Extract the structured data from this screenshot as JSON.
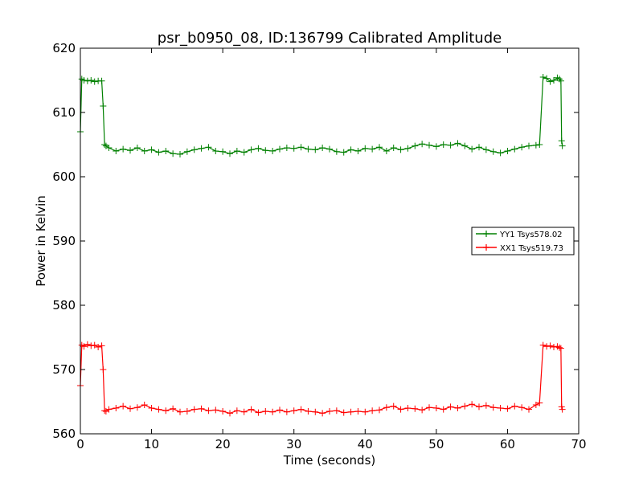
{
  "chart_data": {
    "type": "line",
    "title": "psr_b0950_08, ID:136799 Calibrated Amplitude",
    "xlabel": "Time (seconds)",
    "ylabel": "Power in Kelvin",
    "xlim": [
      0,
      70
    ],
    "ylim": [
      560,
      620
    ],
    "xticks": [
      0,
      10,
      20,
      30,
      40,
      50,
      60,
      70
    ],
    "yticks": [
      560,
      570,
      580,
      590,
      600,
      610,
      620
    ],
    "xtick_labels": [
      "0",
      "10",
      "20",
      "30",
      "40",
      "50",
      "60",
      "70"
    ],
    "ytick_labels": [
      "560",
      "570",
      "580",
      "590",
      "600",
      "610",
      "620"
    ],
    "grid": false,
    "legend_position": "right",
    "marker": "+",
    "series": [
      {
        "name": "YY1 Tsys578.02",
        "color": "#008000",
        "x": [
          0.0,
          0.2,
          0.5,
          1.0,
          1.5,
          2.0,
          2.5,
          3.0,
          3.2,
          3.4,
          3.6,
          4,
          5,
          6,
          7,
          8,
          9,
          10,
          11,
          12,
          13,
          14,
          15,
          16,
          17,
          18,
          19,
          20,
          21,
          22,
          23,
          24,
          25,
          26,
          27,
          28,
          29,
          30,
          31,
          32,
          33,
          34,
          35,
          36,
          37,
          38,
          39,
          40,
          41,
          42,
          43,
          44,
          45,
          46,
          47,
          48,
          49,
          50,
          51,
          52,
          53,
          54,
          55,
          56,
          57,
          58,
          59,
          60,
          61,
          62,
          63,
          64,
          64.5,
          65.0,
          65.5,
          66.0,
          66.5,
          67.0,
          67.3,
          67.5,
          67.6,
          67.7
        ],
        "y": [
          607,
          615.2,
          615.0,
          614.9,
          615.0,
          614.8,
          614.9,
          614.9,
          611,
          605,
          604.8,
          604.5,
          604.0,
          604.3,
          604.1,
          604.5,
          604.0,
          604.2,
          603.8,
          604.0,
          603.6,
          603.5,
          603.9,
          604.2,
          604.4,
          604.6,
          604.0,
          603.9,
          603.6,
          604.0,
          603.8,
          604.2,
          604.4,
          604.1,
          604.0,
          604.3,
          604.5,
          604.4,
          604.6,
          604.3,
          604.2,
          604.5,
          604.3,
          603.9,
          603.8,
          604.2,
          604.0,
          604.4,
          604.3,
          604.6,
          604.0,
          604.5,
          604.2,
          604.4,
          604.8,
          605.1,
          604.9,
          604.7,
          605.0,
          604.9,
          605.2,
          604.8,
          604.3,
          604.6,
          604.2,
          603.9,
          603.7,
          604.0,
          604.3,
          604.6,
          604.8,
          604.9,
          605.0,
          615.5,
          615.3,
          614.8,
          615.0,
          615.4,
          615.2,
          614.9,
          605.6,
          604.8
        ]
      },
      {
        "name": "XX1 Tsys519.73",
        "color": "#ff0000",
        "x": [
          0.0,
          0.2,
          0.5,
          1.0,
          1.5,
          2.0,
          2.5,
          3.0,
          3.2,
          3.4,
          3.6,
          4,
          5,
          6,
          7,
          8,
          9,
          10,
          11,
          12,
          13,
          14,
          15,
          16,
          17,
          18,
          19,
          20,
          21,
          22,
          23,
          24,
          25,
          26,
          27,
          28,
          29,
          30,
          31,
          32,
          33,
          34,
          35,
          36,
          37,
          38,
          39,
          40,
          41,
          42,
          43,
          44,
          45,
          46,
          47,
          48,
          49,
          50,
          51,
          52,
          53,
          54,
          55,
          56,
          57,
          58,
          59,
          60,
          61,
          62,
          63,
          64,
          64.5,
          65.0,
          65.5,
          66.0,
          66.5,
          67.0,
          67.3,
          67.5,
          67.6,
          67.7
        ],
        "y": [
          567.5,
          573.8,
          573.6,
          573.9,
          573.7,
          573.8,
          573.5,
          573.7,
          570,
          563.6,
          563.5,
          563.8,
          564.0,
          564.3,
          563.9,
          564.1,
          564.5,
          564.0,
          563.8,
          563.6,
          563.9,
          563.4,
          563.5,
          563.8,
          563.9,
          563.6,
          563.7,
          563.5,
          563.2,
          563.6,
          563.4,
          563.8,
          563.3,
          563.5,
          563.4,
          563.7,
          563.4,
          563.6,
          563.8,
          563.5,
          563.4,
          563.2,
          563.5,
          563.6,
          563.3,
          563.4,
          563.5,
          563.4,
          563.6,
          563.7,
          564.1,
          564.3,
          563.8,
          564.0,
          563.9,
          563.7,
          564.1,
          564.0,
          563.8,
          564.2,
          564.0,
          564.3,
          564.6,
          564.2,
          564.4,
          564.1,
          564.0,
          563.9,
          564.3,
          564.1,
          563.8,
          564.5,
          564.8,
          573.8,
          573.6,
          573.7,
          573.5,
          573.6,
          573.4,
          573.3,
          564.2,
          563.8
        ]
      }
    ]
  }
}
